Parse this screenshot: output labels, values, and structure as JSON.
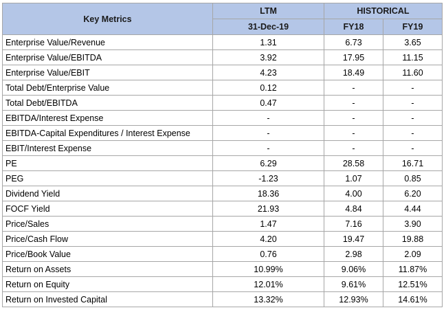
{
  "header": {
    "key_metrics": "Key Metrics",
    "ltm": "LTM",
    "historical": "HISTORICAL",
    "ltm_date": "31-Dec-19",
    "fy18": "FY18",
    "fy19": "FY19"
  },
  "rows": [
    {
      "metric": "Enterprise Value/Revenue",
      "ltm": "1.31",
      "fy18": "6.73",
      "fy19": "3.65"
    },
    {
      "metric": "Enterprise Value/EBITDA",
      "ltm": "3.92",
      "fy18": "17.95",
      "fy19": "11.15"
    },
    {
      "metric": "Enterprise Value/EBIT",
      "ltm": "4.23",
      "fy18": "18.49",
      "fy19": "11.60"
    },
    {
      "metric": "Total Debt/Enterprise Value",
      "ltm": "0.12",
      "fy18": "-",
      "fy19": "-"
    },
    {
      "metric": "Total Debt/EBITDA",
      "ltm": "0.47",
      "fy18": "-",
      "fy19": "-"
    },
    {
      "metric": "EBITDA/Interest Expense",
      "ltm": "-",
      "fy18": "-",
      "fy19": "-"
    },
    {
      "metric": "EBITDA-Capital Expenditures / Interest Expense",
      "ltm": "-",
      "fy18": "-",
      "fy19": "-"
    },
    {
      "metric": "EBIT/Interest Expense",
      "ltm": "-",
      "fy18": "-",
      "fy19": "-"
    },
    {
      "metric": "PE",
      "ltm": "6.29",
      "fy18": "28.58",
      "fy19": "16.71"
    },
    {
      "metric": "PEG",
      "ltm": "-1.23",
      "fy18": "1.07",
      "fy19": "0.85"
    },
    {
      "metric": "Dividend Yield",
      "ltm": "18.36",
      "fy18": "4.00",
      "fy19": "6.20"
    },
    {
      "metric": "FOCF Yield",
      "ltm": "21.93",
      "fy18": "4.84",
      "fy19": "4.44"
    },
    {
      "metric": "Price/Sales",
      "ltm": "1.47",
      "fy18": "7.16",
      "fy19": "3.90"
    },
    {
      "metric": "Price/Cash Flow",
      "ltm": "4.20",
      "fy18": "19.47",
      "fy19": "19.88"
    },
    {
      "metric": "Price/Book Value",
      "ltm": "0.76",
      "fy18": "2.98",
      "fy19": "2.09"
    },
    {
      "metric": "Return on Assets",
      "ltm": "10.99%",
      "fy18": "9.06%",
      "fy19": "11.87%"
    },
    {
      "metric": "Return on Equity",
      "ltm": "12.01%",
      "fy18": "9.61%",
      "fy19": "12.51%"
    },
    {
      "metric": "Return on Invested Capital",
      "ltm": "13.32%",
      "fy18": "12.93%",
      "fy19": "14.61%"
    }
  ],
  "colors": {
    "header_fill": "#b4c6e7",
    "grid_line": "#a6a6a6"
  }
}
